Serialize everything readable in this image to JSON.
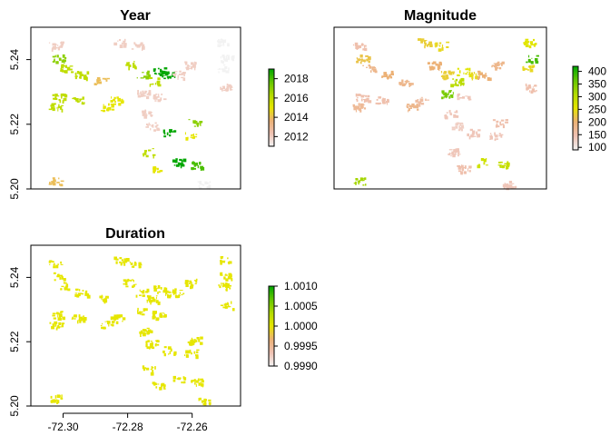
{
  "chart_data": [
    {
      "type": "heatmap",
      "title": "Year",
      "xlim": [
        -72.31,
        -72.245
      ],
      "ylim": [
        5.2,
        5.25
      ],
      "show_x_ticks": false,
      "show_y_ticks": true,
      "y_ticks": [
        5.2,
        5.22,
        5.24
      ],
      "y_tick_labels": [
        "5.20",
        "5.22",
        "5.24"
      ],
      "legend": {
        "placement": "right",
        "range": [
          2011,
          2019
        ],
        "ticks": [
          2012,
          2014,
          2016,
          2018
        ],
        "tick_labels": [
          "2012",
          "2014",
          "2016",
          "2018"
        ],
        "colors": [
          "#F2F2F2",
          "#EFC2B3",
          "#ECB176",
          "#E6E600",
          "#B2DA00",
          "#63C600",
          "#00A600"
        ]
      },
      "patches": [
        {
          "x": -72.3025,
          "y": 5.2445,
          "value": 2012
        },
        {
          "x": -72.3015,
          "y": 5.2405,
          "value": 2017
        },
        {
          "x": -72.2995,
          "y": 5.2375,
          "value": 2016
        },
        {
          "x": -72.2945,
          "y": 5.2355,
          "value": 2016
        },
        {
          "x": -72.2885,
          "y": 5.2335,
          "value": 2014
        },
        {
          "x": -72.2825,
          "y": 5.2455,
          "value": 2012
        },
        {
          "x": -72.2775,
          "y": 5.2445,
          "value": 2012
        },
        {
          "x": -72.2795,
          "y": 5.2385,
          "value": 2016
        },
        {
          "x": -72.2755,
          "y": 5.2355,
          "value": 2017
        },
        {
          "x": -72.2705,
          "y": 5.2365,
          "value": 2019
        },
        {
          "x": -72.2675,
          "y": 5.2355,
          "value": 2019
        },
        {
          "x": -72.2645,
          "y": 5.2355,
          "value": 2012
        },
        {
          "x": -72.2605,
          "y": 5.2385,
          "value": 2012
        },
        {
          "x": -72.2725,
          "y": 5.2335,
          "value": 2016
        },
        {
          "x": -72.2505,
          "y": 5.2455,
          "value": 2011
        },
        {
          "x": -72.2495,
          "y": 5.2405,
          "value": 2011
        },
        {
          "x": -72.2505,
          "y": 5.2375,
          "value": 2011
        },
        {
          "x": -72.2495,
          "y": 5.2315,
          "value": 2012
        },
        {
          "x": -72.3015,
          "y": 5.2285,
          "value": 2016
        },
        {
          "x": -72.3025,
          "y": 5.2255,
          "value": 2016
        },
        {
          "x": -72.2955,
          "y": 5.2275,
          "value": 2016
        },
        {
          "x": -72.2835,
          "y": 5.2275,
          "value": 2015
        },
        {
          "x": -72.2865,
          "y": 5.2255,
          "value": 2015
        },
        {
          "x": -72.2755,
          "y": 5.2295,
          "value": 2012
        },
        {
          "x": -72.2705,
          "y": 5.2285,
          "value": 2012
        },
        {
          "x": -72.2745,
          "y": 5.2235,
          "value": 2012
        },
        {
          "x": -72.2725,
          "y": 5.2195,
          "value": 2012
        },
        {
          "x": -72.2675,
          "y": 5.2175,
          "value": 2019
        },
        {
          "x": -72.2595,
          "y": 5.2205,
          "value": 2017
        },
        {
          "x": -72.2605,
          "y": 5.2165,
          "value": 2015
        },
        {
          "x": -72.2735,
          "y": 5.2115,
          "value": 2016
        },
        {
          "x": -72.2705,
          "y": 5.2065,
          "value": 2015
        },
        {
          "x": -72.2645,
          "y": 5.2085,
          "value": 2019
        },
        {
          "x": -72.2585,
          "y": 5.2075,
          "value": 2018
        },
        {
          "x": -72.2565,
          "y": 5.2015,
          "value": 2011
        },
        {
          "x": -72.3025,
          "y": 5.2025,
          "value": 2014
        }
      ]
    },
    {
      "type": "heatmap",
      "title": "Magnitude",
      "xlim": [
        -72.31,
        -72.245
      ],
      "ylim": [
        5.2,
        5.25
      ],
      "show_x_ticks": false,
      "show_y_ticks": false,
      "legend": {
        "placement": "right",
        "range": [
          90,
          420
        ],
        "ticks": [
          100,
          150,
          200,
          250,
          300,
          350,
          400
        ],
        "tick_labels": [
          "100",
          "150",
          "200",
          "250",
          "300",
          "350",
          "400"
        ],
        "colors": [
          "#F2F2F2",
          "#EFC2B3",
          "#ECB176",
          "#E6E600",
          "#B2DA00",
          "#63C600",
          "#00A600"
        ]
      },
      "patches": [
        {
          "x": -72.3025,
          "y": 5.2445,
          "value": 150
        },
        {
          "x": -72.3015,
          "y": 5.2405,
          "value": 220
        },
        {
          "x": -72.2995,
          "y": 5.2375,
          "value": 180
        },
        {
          "x": -72.2945,
          "y": 5.2355,
          "value": 200
        },
        {
          "x": -72.2885,
          "y": 5.2335,
          "value": 180
        },
        {
          "x": -72.2825,
          "y": 5.2455,
          "value": 230
        },
        {
          "x": -72.2775,
          "y": 5.2445,
          "value": 240
        },
        {
          "x": -72.2795,
          "y": 5.2385,
          "value": 200
        },
        {
          "x": -72.2755,
          "y": 5.2355,
          "value": 230
        },
        {
          "x": -72.2705,
          "y": 5.2365,
          "value": 260
        },
        {
          "x": -72.2675,
          "y": 5.2355,
          "value": 240
        },
        {
          "x": -72.2645,
          "y": 5.2355,
          "value": 200
        },
        {
          "x": -72.2605,
          "y": 5.2385,
          "value": 180
        },
        {
          "x": -72.2725,
          "y": 5.2335,
          "value": 300
        },
        {
          "x": -72.2505,
          "y": 5.2455,
          "value": 260
        },
        {
          "x": -72.2495,
          "y": 5.2405,
          "value": 380
        },
        {
          "x": -72.2505,
          "y": 5.2375,
          "value": 240
        },
        {
          "x": -72.2495,
          "y": 5.2315,
          "value": 150
        },
        {
          "x": -72.3015,
          "y": 5.2285,
          "value": 150
        },
        {
          "x": -72.3025,
          "y": 5.2255,
          "value": 170
        },
        {
          "x": -72.2955,
          "y": 5.2275,
          "value": 150
        },
        {
          "x": -72.2835,
          "y": 5.2275,
          "value": 160
        },
        {
          "x": -72.2865,
          "y": 5.2255,
          "value": 180
        },
        {
          "x": -72.2755,
          "y": 5.2295,
          "value": 350
        },
        {
          "x": -72.2705,
          "y": 5.2285,
          "value": 140
        },
        {
          "x": -72.2745,
          "y": 5.2235,
          "value": 140
        },
        {
          "x": -72.2725,
          "y": 5.2195,
          "value": 130
        },
        {
          "x": -72.2675,
          "y": 5.2175,
          "value": 140
        },
        {
          "x": -72.2595,
          "y": 5.2205,
          "value": 150
        },
        {
          "x": -72.2605,
          "y": 5.2165,
          "value": 140
        },
        {
          "x": -72.2735,
          "y": 5.2115,
          "value": 140
        },
        {
          "x": -72.2705,
          "y": 5.2065,
          "value": 150
        },
        {
          "x": -72.2645,
          "y": 5.2085,
          "value": 280
        },
        {
          "x": -72.2585,
          "y": 5.2075,
          "value": 290
        },
        {
          "x": -72.2565,
          "y": 5.2015,
          "value": 140
        },
        {
          "x": -72.3025,
          "y": 5.2025,
          "value": 320
        }
      ]
    },
    {
      "type": "heatmap",
      "title": "Duration",
      "xlim": [
        -72.31,
        -72.245
      ],
      "ylim": [
        5.2,
        5.25
      ],
      "show_x_ticks": true,
      "show_y_ticks": true,
      "x_ticks": [
        -72.3,
        -72.28,
        -72.26
      ],
      "x_tick_labels": [
        "-72.30",
        "-72.28",
        "-72.26"
      ],
      "y_ticks": [
        5.2,
        5.22,
        5.24
      ],
      "y_tick_labels": [
        "5.20",
        "5.22",
        "5.24"
      ],
      "legend": {
        "placement": "right",
        "range": [
          0.999,
          1.001
        ],
        "ticks": [
          0.999,
          0.9995,
          1.0,
          1.0005,
          1.001
        ],
        "tick_labels": [
          "0.9990",
          "0.9995",
          "1.0000",
          "1.0005",
          "1.0010"
        ],
        "colors": [
          "#F2F2F2",
          "#EFC2B3",
          "#ECB176",
          "#E6E600",
          "#B2DA00",
          "#63C600",
          "#00A600"
        ]
      },
      "patches": [
        {
          "x": -72.3025,
          "y": 5.2445,
          "value": 1.0
        },
        {
          "x": -72.3015,
          "y": 5.2405,
          "value": 1.0
        },
        {
          "x": -72.2995,
          "y": 5.2375,
          "value": 1.0
        },
        {
          "x": -72.2945,
          "y": 5.2355,
          "value": 1.0
        },
        {
          "x": -72.2885,
          "y": 5.2335,
          "value": 1.0
        },
        {
          "x": -72.2825,
          "y": 5.2455,
          "value": 1.0
        },
        {
          "x": -72.2775,
          "y": 5.2445,
          "value": 1.0
        },
        {
          "x": -72.2795,
          "y": 5.2385,
          "value": 1.0
        },
        {
          "x": -72.2755,
          "y": 5.2355,
          "value": 1.0
        },
        {
          "x": -72.2705,
          "y": 5.2365,
          "value": 1.0
        },
        {
          "x": -72.2675,
          "y": 5.2355,
          "value": 1.0
        },
        {
          "x": -72.2645,
          "y": 5.2355,
          "value": 1.0
        },
        {
          "x": -72.2605,
          "y": 5.2385,
          "value": 1.0
        },
        {
          "x": -72.2725,
          "y": 5.2335,
          "value": 1.0
        },
        {
          "x": -72.2505,
          "y": 5.2455,
          "value": 1.0
        },
        {
          "x": -72.2495,
          "y": 5.2405,
          "value": 1.0
        },
        {
          "x": -72.2505,
          "y": 5.2375,
          "value": 1.0
        },
        {
          "x": -72.2495,
          "y": 5.2315,
          "value": 1.0
        },
        {
          "x": -72.3015,
          "y": 5.2285,
          "value": 1.0
        },
        {
          "x": -72.3025,
          "y": 5.2255,
          "value": 1.0
        },
        {
          "x": -72.2955,
          "y": 5.2275,
          "value": 1.0
        },
        {
          "x": -72.2835,
          "y": 5.2275,
          "value": 1.0
        },
        {
          "x": -72.2865,
          "y": 5.2255,
          "value": 1.0
        },
        {
          "x": -72.2755,
          "y": 5.2295,
          "value": 1.0
        },
        {
          "x": -72.2705,
          "y": 5.2285,
          "value": 1.0
        },
        {
          "x": -72.2745,
          "y": 5.2235,
          "value": 1.0
        },
        {
          "x": -72.2725,
          "y": 5.2195,
          "value": 1.0
        },
        {
          "x": -72.2675,
          "y": 5.2175,
          "value": 1.0
        },
        {
          "x": -72.2595,
          "y": 5.2205,
          "value": 1.0
        },
        {
          "x": -72.2605,
          "y": 5.2165,
          "value": 1.0
        },
        {
          "x": -72.2735,
          "y": 5.2115,
          "value": 1.0
        },
        {
          "x": -72.2705,
          "y": 5.2065,
          "value": 1.0
        },
        {
          "x": -72.2645,
          "y": 5.2085,
          "value": 1.0
        },
        {
          "x": -72.2585,
          "y": 5.2075,
          "value": 1.0
        },
        {
          "x": -72.2565,
          "y": 5.2015,
          "value": 1.0
        },
        {
          "x": -72.3025,
          "y": 5.2025,
          "value": 1.0
        }
      ]
    }
  ]
}
